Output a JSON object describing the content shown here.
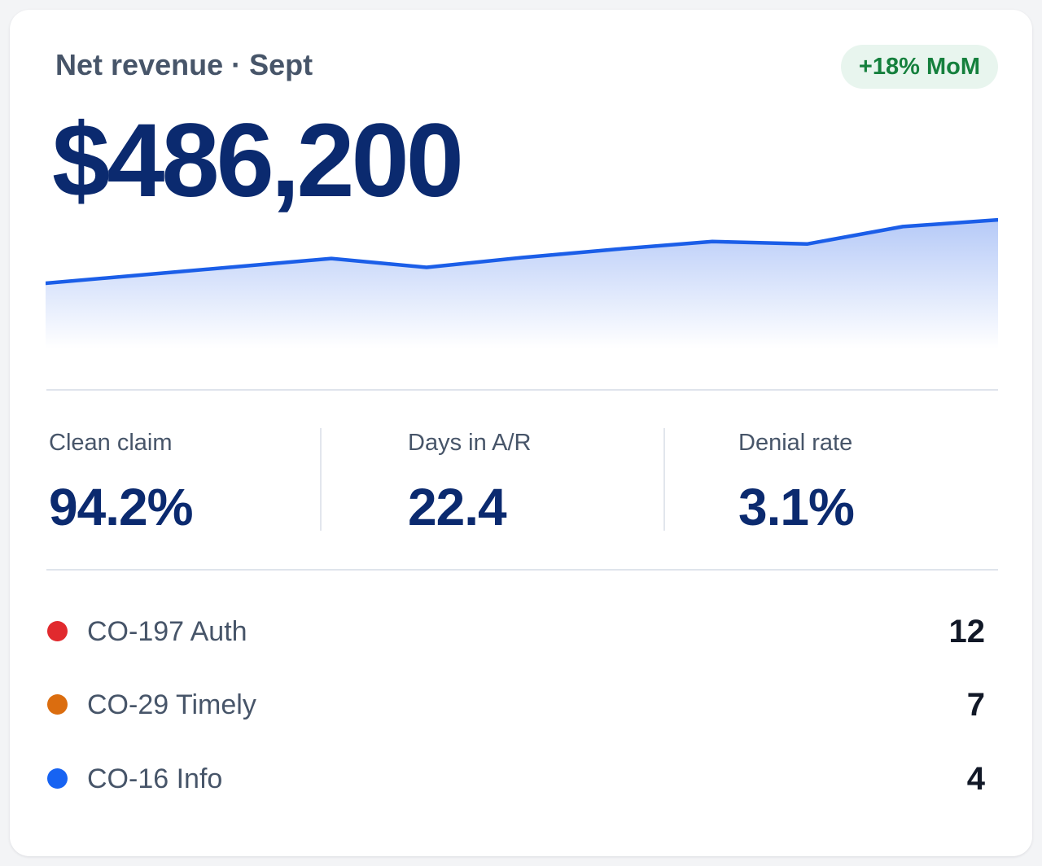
{
  "card": {
    "title": "Net revenue · Sept",
    "badge": "+18% MoM",
    "value": "$486,200"
  },
  "chart_data": {
    "type": "area",
    "title": "",
    "xlabel": "",
    "ylabel": "",
    "series": [
      {
        "values": [
          100,
          103.8,
          107.6,
          111.4,
          107.3,
          111.8,
          115.7,
          119.2,
          118.1,
          126.1,
          129.2
        ]
      }
    ],
    "ylim": [
      70,
      130
    ],
    "grid": false,
    "line_color": "#1b5ee8",
    "fill_color": "#9db8f5"
  },
  "stats": [
    {
      "label": "Clean claim",
      "value": "94.2%"
    },
    {
      "label": "Days in A/R",
      "value": "22.4"
    },
    {
      "label": "Denial rate",
      "value": "3.1%"
    }
  ],
  "denials": [
    {
      "label": "CO-197 Auth",
      "count": "12",
      "color": "#e12a2e"
    },
    {
      "label": "CO-29 Timely",
      "count": "7",
      "color": "#db6d0f"
    },
    {
      "label": "CO-16 Info",
      "count": "4",
      "color": "#1763f2"
    }
  ]
}
